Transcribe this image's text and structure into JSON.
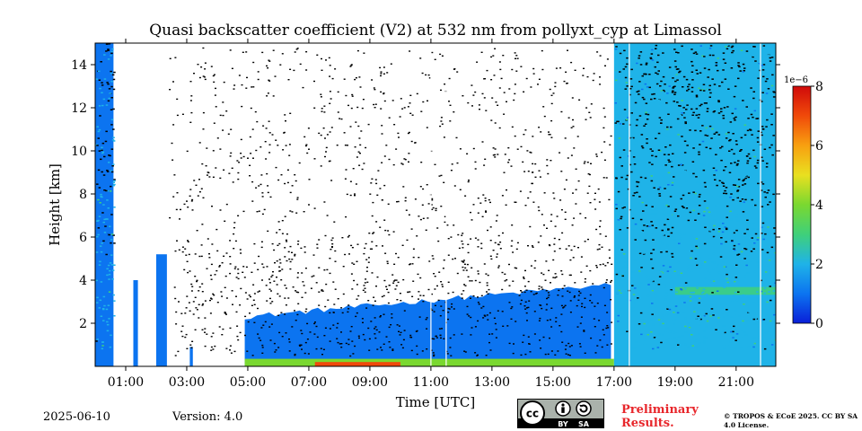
{
  "title": "Quasi backscatter coefficient (V2) at 532 nm from pollyxt_cyp at Limassol",
  "footer": {
    "date": "2025-06-10",
    "version": "Version: 4.0",
    "preliminary": "Preliminary Results.",
    "copyright": "© TROPOS & ECoE 2025. CC BY SA 4.0 License.",
    "license_badge": {
      "cc": "cc",
      "by": "BY",
      "sa": "SA"
    }
  },
  "chart_data": {
    "type": "heatmap",
    "title": "Quasi backscatter coefficient (V2) at 532 nm from pollyxt_cyp at Limassol",
    "xlabel": "Time [UTC]",
    "ylabel": "Height [km]",
    "xlim_hours": [
      0.0,
      22.3
    ],
    "ylim_km": [
      0.0,
      15.0
    ],
    "xticks": [
      {
        "hour": 1,
        "label": "01:00"
      },
      {
        "hour": 3,
        "label": "03:00"
      },
      {
        "hour": 5,
        "label": "05:00"
      },
      {
        "hour": 7,
        "label": "07:00"
      },
      {
        "hour": 9,
        "label": "09:00"
      },
      {
        "hour": 11,
        "label": "11:00"
      },
      {
        "hour": 13,
        "label": "13:00"
      },
      {
        "hour": 15,
        "label": "15:00"
      },
      {
        "hour": 17,
        "label": "17:00"
      },
      {
        "hour": 19,
        "label": "19:00"
      },
      {
        "hour": 21,
        "label": "21:00"
      }
    ],
    "yticks": [
      {
        "km": 2,
        "label": "2"
      },
      {
        "km": 4,
        "label": "4"
      },
      {
        "km": 6,
        "label": "6"
      },
      {
        "km": 8,
        "label": "8"
      },
      {
        "km": 10,
        "label": "10"
      },
      {
        "km": 12,
        "label": "12"
      },
      {
        "km": 14,
        "label": "14"
      }
    ],
    "colorbar": {
      "range": [
        0,
        8
      ],
      "exponent_label": "1e−6",
      "ticks": [
        {
          "value": 0,
          "label": "0"
        },
        {
          "value": 2,
          "label": "2"
        },
        {
          "value": 4,
          "label": "4"
        },
        {
          "value": 6,
          "label": "6"
        },
        {
          "value": 8,
          "label": "8"
        }
      ],
      "stops": [
        "#0a1fd8",
        "#0c74f0",
        "#1fb3e8",
        "#3fd07a",
        "#7ad830",
        "#e9e020",
        "#f8a010",
        "#f04a0a",
        "#d00a0a"
      ]
    },
    "layers": [
      {
        "name": "upper-troposphere-night",
        "t": [
          0.0,
          0.6
        ],
        "top_km": 15.0,
        "value": 1.2
      },
      {
        "name": "profile-1-45",
        "t": [
          1.25,
          1.4
        ],
        "top_km": 4.0,
        "value": 1.3
      },
      {
        "name": "profile-2-10",
        "t": [
          2.0,
          2.35
        ],
        "top_km": 5.2,
        "value": 1.4
      },
      {
        "name": "profile-3-15",
        "t": [
          3.1,
          3.2
        ],
        "top_km": 0.9,
        "value": 1.0
      },
      {
        "name": "boundary-layer-day",
        "t": [
          4.9,
          16.9
        ],
        "top_km_start": 2.3,
        "top_km_end": 3.8,
        "value": 1.1
      },
      {
        "name": "surface-layer-day",
        "t": [
          4.9,
          17.0
        ],
        "top_km": 0.35,
        "value": 3.5
      },
      {
        "name": "surface-layer-peak",
        "t": [
          7.2,
          10.0
        ],
        "top_km": 0.2,
        "value": 6.5
      },
      {
        "name": "evening-column",
        "t": [
          17.0,
          22.3
        ],
        "top_km": 15.0,
        "value": 1.5
      },
      {
        "name": "evening-aerosol-layer",
        "t": [
          19.0,
          22.3
        ],
        "height_km": 3.5,
        "value": 3.2
      }
    ],
    "gaps_hours": [
      [
        0.6,
        1.25
      ],
      [
        1.4,
        2.0
      ],
      [
        2.35,
        3.1
      ],
      [
        3.2,
        4.9
      ]
    ],
    "vertical_lines_hours": [
      11.0,
      11.5,
      17.5,
      21.8
    ]
  }
}
